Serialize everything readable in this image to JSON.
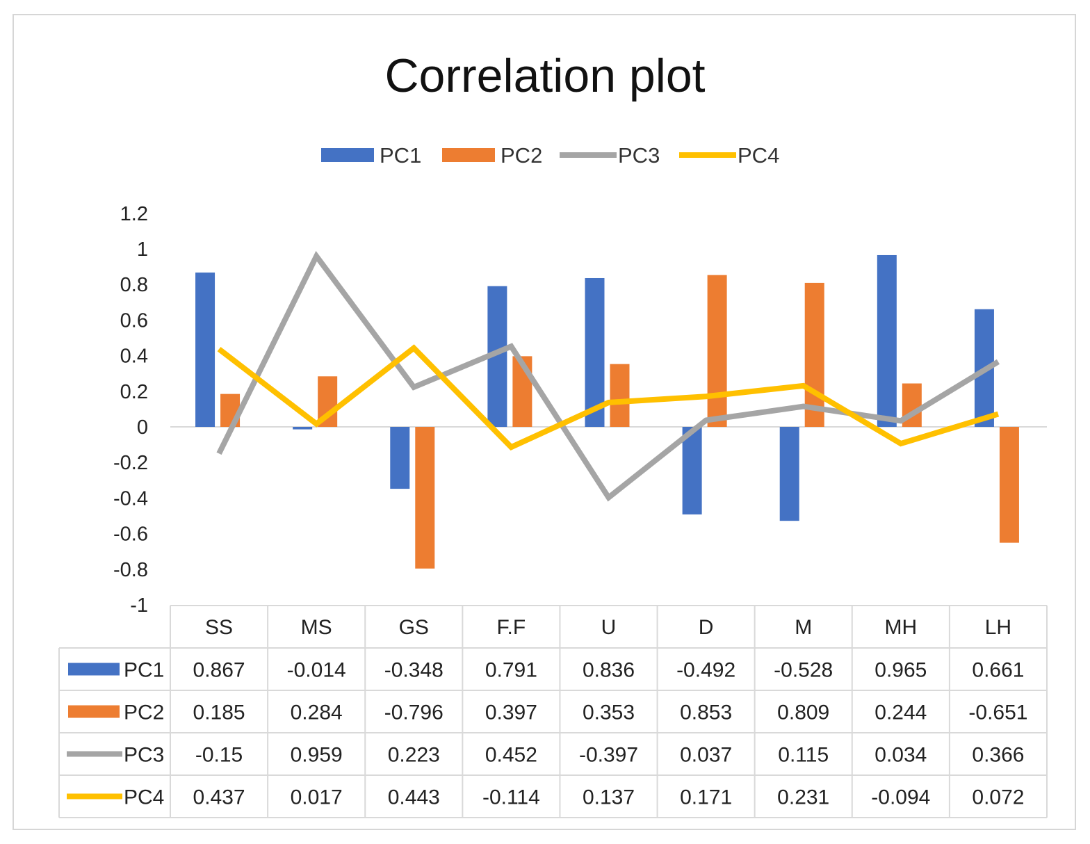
{
  "chart_data": {
    "type": "bar",
    "title": "Correlation plot",
    "categories": [
      "SS",
      "MS",
      "GS",
      "F.F",
      "U",
      "D",
      "M",
      "MH",
      "LH"
    ],
    "ylim": [
      -1,
      1.2
    ],
    "yticks": [
      1.2,
      1,
      0.8,
      0.6,
      0.4,
      0.2,
      0,
      -0.2,
      -0.4,
      -0.6,
      -0.8,
      -1
    ],
    "ytick_labels": [
      "1.2",
      "1",
      "0.8",
      "0.6",
      "0.4",
      "0.2",
      "0",
      "-0.2",
      "-0.4",
      "-0.6",
      "-0.8",
      "-1"
    ],
    "legend_position": "top",
    "data_table": true,
    "series": [
      {
        "name": "PC1",
        "kind": "bar",
        "color": "#4472c4",
        "values": [
          0.867,
          -0.014,
          -0.348,
          0.791,
          0.836,
          -0.492,
          -0.528,
          0.965,
          0.661
        ],
        "labels": [
          "0.867",
          "-0.014",
          "-0.348",
          "0.791",
          "0.836",
          "-0.492",
          "-0.528",
          "0.965",
          "0.661"
        ]
      },
      {
        "name": "PC2",
        "kind": "bar",
        "color": "#ed7d31",
        "values": [
          0.185,
          0.284,
          -0.796,
          0.397,
          0.353,
          0.853,
          0.809,
          0.244,
          -0.651
        ],
        "labels": [
          "0.185",
          "0.284",
          "-0.796",
          "0.397",
          "0.353",
          "0.853",
          "0.809",
          "0.244",
          "-0.651"
        ]
      },
      {
        "name": "PC3",
        "kind": "line",
        "color": "#a5a5a5",
        "values": [
          -0.15,
          0.959,
          0.223,
          0.452,
          -0.397,
          0.037,
          0.115,
          0.034,
          0.366
        ],
        "labels": [
          "-0.15",
          "0.959",
          "0.223",
          "0.452",
          "-0.397",
          "0.037",
          "0.115",
          "0.034",
          "0.366"
        ]
      },
      {
        "name": "PC4",
        "kind": "line",
        "color": "#ffc000",
        "values": [
          0.437,
          0.017,
          0.443,
          -0.114,
          0.137,
          0.171,
          0.231,
          -0.094,
          0.072
        ],
        "labels": [
          "0.437",
          "0.017",
          "0.443",
          "-0.114",
          "0.137",
          "0.171",
          "0.231",
          "-0.094",
          "0.072"
        ]
      }
    ]
  }
}
